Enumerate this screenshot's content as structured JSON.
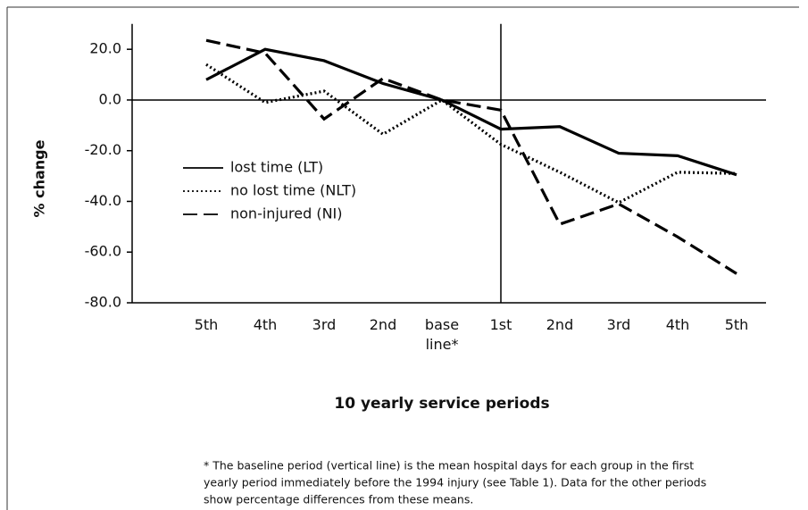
{
  "chart_data": {
    "type": "line",
    "categories": [
      "5th",
      "4th",
      "3rd",
      "2nd",
      "base line*",
      "1st",
      "2nd",
      "3rd",
      "4th",
      "5th"
    ],
    "series": [
      {
        "name": "lost time (LT)",
        "color": "#000000",
        "dash": "none",
        "values": [
          8,
          20,
          15.5,
          6.5,
          0,
          -11.5,
          -10.5,
          -21,
          -22,
          -29.5
        ]
      },
      {
        "name": "no lost time (NLT)",
        "color": "#000000",
        "dash": "2 3",
        "values": [
          14,
          -1,
          3.5,
          -13.5,
          0,
          -17.5,
          -28.5,
          -40.5,
          -28.5,
          -29
        ]
      },
      {
        "name": "non-injured (NI)",
        "color": "#000000",
        "dash": "16 7",
        "values": [
          23.5,
          18.5,
          -7.5,
          8.5,
          0,
          -4,
          -49,
          -41,
          -54,
          -68.5
        ]
      }
    ],
    "ylim": [
      -80,
      30
    ],
    "yticks": [
      {
        "value": 20,
        "label": "20.0"
      },
      {
        "value": 0,
        "label": "0.0"
      },
      {
        "value": -20,
        "label": "-20.0"
      },
      {
        "value": -40,
        "label": "-40.0"
      },
      {
        "value": -60,
        "label": "-60.0"
      },
      {
        "value": -80,
        "label": "-80.0"
      }
    ],
    "y_label": "% change",
    "x_label": "10 yearly service periods",
    "footnote": [
      "* The baseline period (vertical line) is the mean hospital days for each group in the first",
      "yearly period immediately before the 1994 injury (see Table 1). Data for the other periods",
      "show percentage differences from these means."
    ]
  }
}
